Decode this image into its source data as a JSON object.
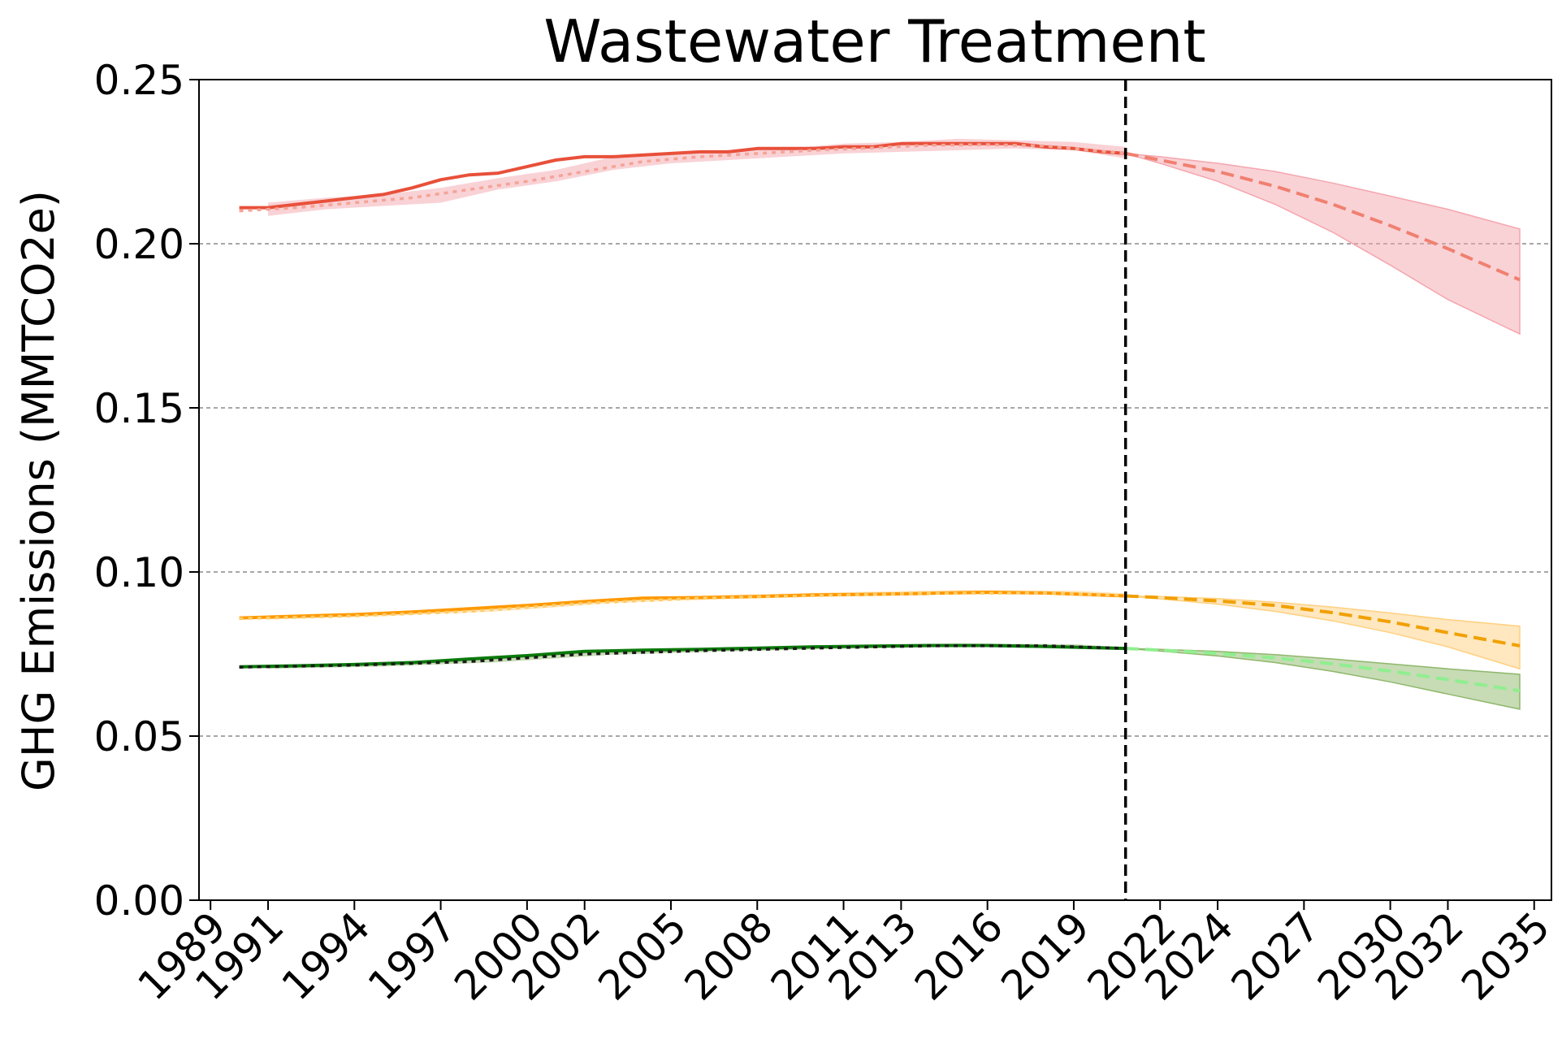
{
  "chart_data": {
    "type": "line",
    "title": "Wastewater Treatment",
    "xlabel": "",
    "ylabel": "GHG Emissions (MMTCO2e)",
    "xlim": [
      1988.6,
      2035.6
    ],
    "ylim": [
      0,
      0.25
    ],
    "x_ticks": [
      1989,
      1991,
      1994,
      1997,
      2000,
      2002,
      2005,
      2008,
      2011,
      2013,
      2016,
      2019,
      2022,
      2024,
      2027,
      2030,
      2032,
      2035
    ],
    "y_ticks": [
      0.0,
      0.05,
      0.1,
      0.15,
      0.2,
      0.25
    ],
    "y_tick_labels": [
      "0.00",
      "0.05",
      "0.10",
      "0.15",
      "0.20",
      "0.25"
    ],
    "grid": "horizontal dashed",
    "forecast_start": 2020.8,
    "series": [
      {
        "color_hist": "#e8503a",
        "color_fit": "#f4a498",
        "color_proj": "#f08070",
        "band_color": "#f4a6ae",
        "hist_x": [
          1990,
          1991,
          1992,
          1993,
          1994,
          1995,
          1996,
          1997,
          1998,
          1999,
          2000,
          2001,
          2002,
          2003,
          2004,
          2005,
          2006,
          2007,
          2008,
          2009,
          2010,
          2011,
          2012,
          2013,
          2014,
          2015,
          2016,
          2017,
          2018,
          2019,
          2020,
          2020.8
        ],
        "hist_y": [
          0.211,
          0.211,
          0.212,
          0.213,
          0.214,
          0.215,
          0.217,
          0.2195,
          0.221,
          0.2215,
          0.2235,
          0.2255,
          0.2265,
          0.2265,
          0.227,
          0.2275,
          0.228,
          0.228,
          0.229,
          0.229,
          0.229,
          0.2295,
          0.2295,
          0.2305,
          0.2305,
          0.2305,
          0.2305,
          0.2305,
          0.2295,
          0.229,
          0.228,
          0.2275
        ],
        "fit_x": [
          1990,
          1992,
          1994,
          1996,
          1998,
          2000,
          2002,
          2004,
          2006,
          2008,
          2010,
          2012,
          2014,
          2016,
          2018,
          2020.8
        ],
        "fit_y": [
          0.21,
          0.211,
          0.2125,
          0.214,
          0.2165,
          0.219,
          0.222,
          0.225,
          0.2265,
          0.2275,
          0.2285,
          0.2292,
          0.23,
          0.2302,
          0.2298,
          0.2275
        ],
        "fit_band_x": [
          1991,
          1993,
          1995,
          1997,
          1999,
          2001,
          2003,
          2005,
          2007,
          2009,
          2011,
          2013,
          2015,
          2017,
          2019,
          2020.8
        ],
        "fit_band_lo": [
          0.2085,
          0.2105,
          0.2115,
          0.2125,
          0.2165,
          0.219,
          0.2225,
          0.2245,
          0.2255,
          0.2265,
          0.2275,
          0.228,
          0.2285,
          0.229,
          0.2285,
          0.226
        ],
        "fit_band_hi": [
          0.2125,
          0.214,
          0.215,
          0.217,
          0.22,
          0.2225,
          0.2265,
          0.2275,
          0.2285,
          0.229,
          0.2305,
          0.231,
          0.232,
          0.2315,
          0.231,
          0.2295
        ],
        "proj_x": [
          2020.8,
          2022,
          2024,
          2026,
          2028,
          2030,
          2032,
          2034.5
        ],
        "proj_y": [
          0.2275,
          0.2255,
          0.222,
          0.2175,
          0.212,
          0.2055,
          0.1985,
          0.189
        ],
        "proj_lo": [
          0.2275,
          0.2245,
          0.219,
          0.212,
          0.2035,
          0.1935,
          0.183,
          0.1725
        ],
        "proj_hi": [
          0.2275,
          0.2265,
          0.2245,
          0.222,
          0.2185,
          0.2145,
          0.2105,
          0.2045
        ]
      },
      {
        "color_hist": "#ff9900",
        "color_fit": "#ffcc66",
        "color_proj": "#f0a000",
        "band_color": "#ffd080",
        "hist_x": [
          1990,
          1992,
          1994,
          1996,
          1998,
          2000,
          2002,
          2004,
          2006,
          2008,
          2010,
          2012,
          2014,
          2016,
          2018,
          2020.8
        ],
        "hist_y": [
          0.086,
          0.0865,
          0.087,
          0.0878,
          0.0888,
          0.0898,
          0.091,
          0.092,
          0.0922,
          0.0925,
          0.093,
          0.0932,
          0.0935,
          0.0938,
          0.0936,
          0.0927
        ],
        "fit_x": [
          1990,
          1994,
          1998,
          2002,
          2006,
          2010,
          2014,
          2018,
          2020.8
        ],
        "fit_y": [
          0.0858,
          0.0866,
          0.088,
          0.0905,
          0.092,
          0.0928,
          0.0935,
          0.0936,
          0.0928
        ],
        "fit_band_x": [
          1991,
          1995,
          1999,
          2003,
          2007,
          2011,
          2015,
          2019,
          2020.8
        ],
        "fit_band_lo": [
          0.0855,
          0.0865,
          0.088,
          0.0905,
          0.0918,
          0.0926,
          0.0932,
          0.0932,
          0.0922
        ],
        "fit_band_hi": [
          0.0868,
          0.0878,
          0.0895,
          0.0918,
          0.093,
          0.0938,
          0.0945,
          0.0943,
          0.0935
        ],
        "proj_x": [
          2020.8,
          2022,
          2024,
          2026,
          2028,
          2030,
          2032,
          2034.5
        ],
        "proj_y": [
          0.0927,
          0.0922,
          0.0912,
          0.0898,
          0.0876,
          0.0848,
          0.0815,
          0.0775
        ],
        "proj_lo": [
          0.0927,
          0.0918,
          0.0902,
          0.088,
          0.0851,
          0.0815,
          0.0772,
          0.0705
        ],
        "proj_hi": [
          0.0927,
          0.0925,
          0.0919,
          0.0908,
          0.0893,
          0.0875,
          0.0855,
          0.0835
        ]
      },
      {
        "color_hist": "#0a7a0a",
        "color_fit": "#1a1a1a",
        "color_proj": "#90ee90",
        "band_color": "#8fb86b",
        "hist_x": [
          1990,
          1992,
          1994,
          1996,
          1998,
          2000,
          2002,
          2004,
          2006,
          2008,
          2010,
          2012,
          2014,
          2016,
          2018,
          2020.8
        ],
        "hist_y": [
          0.0711,
          0.0714,
          0.0718,
          0.0724,
          0.0735,
          0.0745,
          0.0758,
          0.0762,
          0.0764,
          0.0768,
          0.0772,
          0.0774,
          0.0776,
          0.0776,
          0.0773,
          0.0767
        ],
        "fit_x": [
          1990,
          1994,
          1998,
          2002,
          2006,
          2010,
          2014,
          2018,
          2020.8
        ],
        "fit_y": [
          0.071,
          0.0716,
          0.0727,
          0.075,
          0.076,
          0.0768,
          0.0775,
          0.0775,
          0.0767
        ],
        "fit_band_x": [
          1991,
          1995,
          1999,
          2003,
          2007,
          2011,
          2015,
          2019,
          2020.8
        ],
        "fit_band_lo": [
          0.0705,
          0.0712,
          0.0725,
          0.0748,
          0.0758,
          0.0766,
          0.0772,
          0.0771,
          0.0763
        ],
        "fit_band_hi": [
          0.0716,
          0.0722,
          0.0738,
          0.076,
          0.0768,
          0.0776,
          0.0782,
          0.078,
          0.077
        ],
        "proj_x": [
          2020.8,
          2022,
          2024,
          2026,
          2028,
          2030,
          2032,
          2034.5
        ],
        "proj_y": [
          0.0767,
          0.0762,
          0.0752,
          0.0738,
          0.072,
          0.0698,
          0.0672,
          0.0638
        ],
        "proj_lo": [
          0.0767,
          0.0759,
          0.0744,
          0.0724,
          0.0697,
          0.0665,
          0.0628,
          0.0582
        ],
        "proj_hi": [
          0.0767,
          0.0764,
          0.0758,
          0.0748,
          0.0735,
          0.072,
          0.0705,
          0.0688
        ]
      }
    ]
  }
}
